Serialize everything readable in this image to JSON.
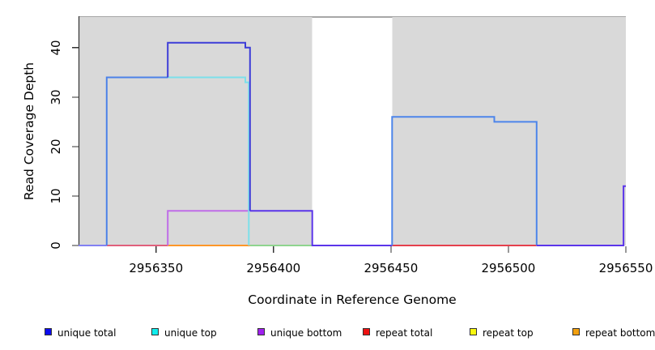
{
  "chart_data": {
    "type": "line",
    "subtype": "step-coverage",
    "title": "",
    "xlabel": "Coordinate in Reference Genome",
    "ylabel": "Read Coverage Depth",
    "xlim": [
      2956317,
      2956550
    ],
    "ylim": [
      0,
      46.2
    ],
    "grid": false,
    "x_ticks": [
      {
        "value": 2956350,
        "label": "2956350"
      },
      {
        "value": 2956400,
        "label": "2956400"
      },
      {
        "value": 2956450,
        "label": "2956450"
      },
      {
        "value": 2956500,
        "label": "2956500"
      },
      {
        "value": 2956550,
        "label": "2956550"
      }
    ],
    "y_ticks": [
      {
        "value": 0,
        "label": "0"
      },
      {
        "value": 10,
        "label": "10"
      },
      {
        "value": 20,
        "label": "20"
      },
      {
        "value": 30,
        "label": "30"
      },
      {
        "value": 40,
        "label": "40"
      }
    ],
    "background_color": "#ffffff",
    "shaded_regions": [
      {
        "x0": 2956317,
        "x1": 2956416.5,
        "color": "#d9d9d9"
      },
      {
        "x0": 2956450.5,
        "x1": 2956550,
        "color": "#d9d9d9"
      }
    ],
    "border_colors": {
      "top": "#8a8a8a",
      "left": "#333333"
    },
    "series": [
      {
        "name": "unique total",
        "steps": [
          [
            2956317,
            0
          ],
          [
            2956329,
            34
          ],
          [
            2956355,
            41
          ],
          [
            2956388,
            40
          ],
          [
            2956390,
            7
          ],
          [
            2956416,
            0
          ],
          [
            2956450,
            26
          ],
          [
            2956494,
            25
          ],
          [
            2956512,
            0
          ],
          [
            2956549,
            12
          ],
          [
            2956550,
            12
          ]
        ]
      },
      {
        "name": "unique top",
        "steps": [
          [
            2956317,
            0
          ],
          [
            2956329,
            34
          ],
          [
            2956388,
            33
          ],
          [
            2956390,
            0
          ],
          [
            2956550,
            0
          ]
        ]
      },
      {
        "name": "unique bottom",
        "steps": [
          [
            2956317,
            0
          ],
          [
            2956355,
            7
          ],
          [
            2956390,
            0
          ],
          [
            2956550,
            0
          ]
        ]
      },
      {
        "name": "repeat total",
        "steps": [
          [
            2956329,
            0
          ],
          [
            2956512,
            0
          ]
        ]
      },
      {
        "name": "repeat top",
        "steps": [
          [
            2956329,
            0
          ],
          [
            2956512,
            0
          ]
        ]
      },
      {
        "name": "repeat bottom",
        "steps": [
          [
            2956355,
            0
          ],
          [
            2956390,
            0
          ]
        ]
      }
    ],
    "render_segments": [
      {
        "name": "repeat-total-baseline-left",
        "color": "#e0607c",
        "points": [
          [
            2956329,
            0
          ],
          [
            2956355,
            0
          ]
        ]
      },
      {
        "name": "repeat-bottom-baseline",
        "color": "#ff9728",
        "points": [
          [
            2956355,
            0
          ],
          [
            2956390,
            0
          ]
        ]
      },
      {
        "name": "overlap-baseline-green",
        "color": "#8fd48f",
        "points": [
          [
            2956390,
            0
          ],
          [
            2956416.5,
            0
          ]
        ]
      },
      {
        "name": "repeat-total-baseline-right",
        "color": "#e5404d",
        "points": [
          [
            2956450.5,
            0
          ],
          [
            2956512,
            0
          ]
        ]
      },
      {
        "name": "unique-bottom-step",
        "color": "#bf6ce8",
        "points": [
          [
            2956355,
            0
          ],
          [
            2956355,
            7
          ],
          [
            2956390,
            7
          ]
        ]
      },
      {
        "name": "unique-top-step",
        "color": "#7ce0ea",
        "points": [
          [
            2956355,
            34
          ],
          [
            2956388,
            34
          ],
          [
            2956388,
            33
          ],
          [
            2956389.5,
            33
          ],
          [
            2956389.5,
            0
          ]
        ]
      },
      {
        "name": "unique-total-baseline-start",
        "color": "#8280f2",
        "points": [
          [
            2956317,
            0
          ],
          [
            2956329,
            0
          ]
        ]
      },
      {
        "name": "unique-total-left-plateau",
        "color": "#4d82e8",
        "points": [
          [
            2956329,
            0
          ],
          [
            2956329,
            34
          ],
          [
            2956355,
            34
          ]
        ]
      },
      {
        "name": "unique-total-peak",
        "color": "#3d3dd8",
        "points": [
          [
            2956355,
            34
          ],
          [
            2956355,
            41
          ],
          [
            2956388,
            41
          ],
          [
            2956388,
            40
          ],
          [
            2956390,
            40
          ],
          [
            2956390,
            7
          ]
        ]
      },
      {
        "name": "unique-total-mid-gap",
        "color": "#5b35ea",
        "points": [
          [
            2956390,
            7
          ],
          [
            2956416.5,
            7
          ],
          [
            2956416.5,
            0
          ],
          [
            2956450.5,
            0
          ]
        ]
      },
      {
        "name": "unique-total-right-plateau",
        "color": "#4d85ea",
        "points": [
          [
            2956450.5,
            0
          ],
          [
            2956450.5,
            26
          ],
          [
            2956494,
            26
          ],
          [
            2956494,
            25
          ],
          [
            2956512,
            25
          ],
          [
            2956512,
            0
          ]
        ]
      },
      {
        "name": "unique-total-right-edge",
        "color": "#5b35ea",
        "points": [
          [
            2956512,
            0
          ],
          [
            2956549,
            0
          ],
          [
            2956549,
            12
          ],
          [
            2956550,
            12
          ]
        ]
      }
    ],
    "legend": [
      {
        "label": "unique total",
        "color": "#0c0cf0"
      },
      {
        "label": "unique top",
        "color": "#10eded"
      },
      {
        "label": "unique bottom",
        "color": "#a020f0"
      },
      {
        "label": "repeat total",
        "color": "#ee1111"
      },
      {
        "label": "repeat top",
        "color": "#f7f70e"
      },
      {
        "label": "repeat bottom",
        "color": "#f2a00f"
      }
    ],
    "legend_position": "bottom"
  }
}
